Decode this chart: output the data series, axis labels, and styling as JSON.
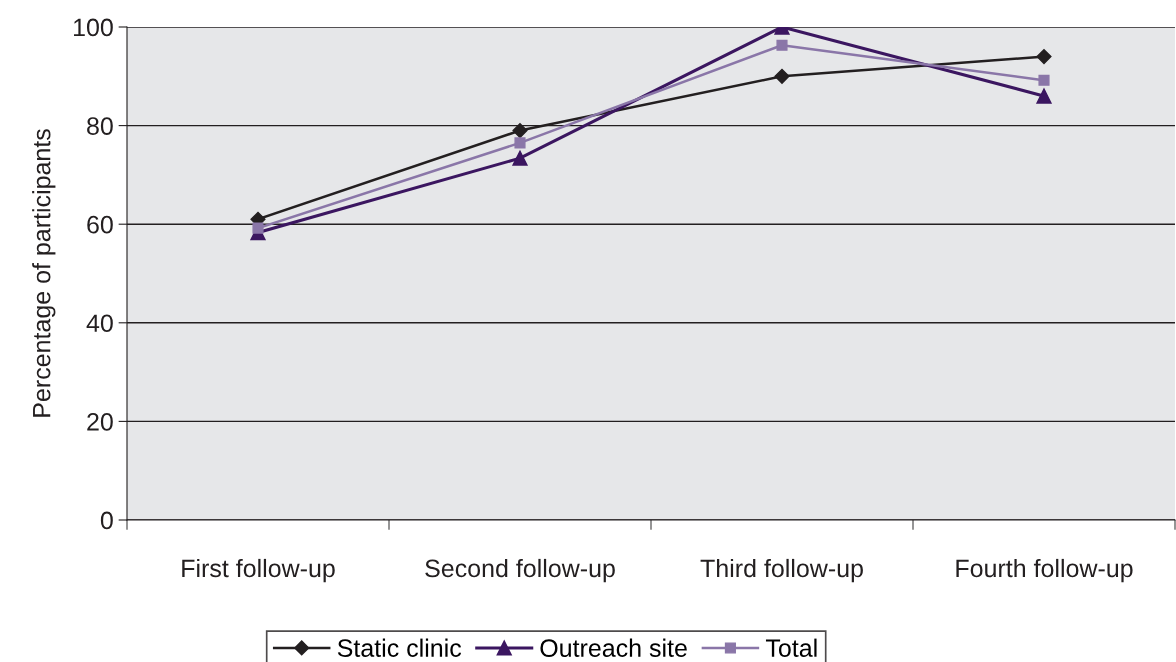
{
  "chart_data": {
    "type": "line",
    "ylabel": "Percentage of participants",
    "categories": [
      "First follow-up",
      "Second follow-up",
      "Third follow-up",
      "Fourth follow-up"
    ],
    "series": [
      {
        "name": "Static clinic",
        "color": "#231f20",
        "marker": "diamond",
        "values": [
          61,
          79,
          90,
          94
        ]
      },
      {
        "name": "Outreach site",
        "color": "#3b1660",
        "marker": "triangle",
        "values": [
          58.3,
          73.4,
          100,
          86
        ]
      },
      {
        "name": "Total",
        "color": "#8a76a8",
        "marker": "square",
        "values": [
          59.2,
          76.5,
          96.3,
          89.2
        ]
      }
    ],
    "ylim": [
      0,
      100
    ],
    "yticks": [
      0,
      20,
      40,
      60,
      80,
      100
    ],
    "grid": "y",
    "legend": "bottom",
    "line_style": "solid"
  }
}
